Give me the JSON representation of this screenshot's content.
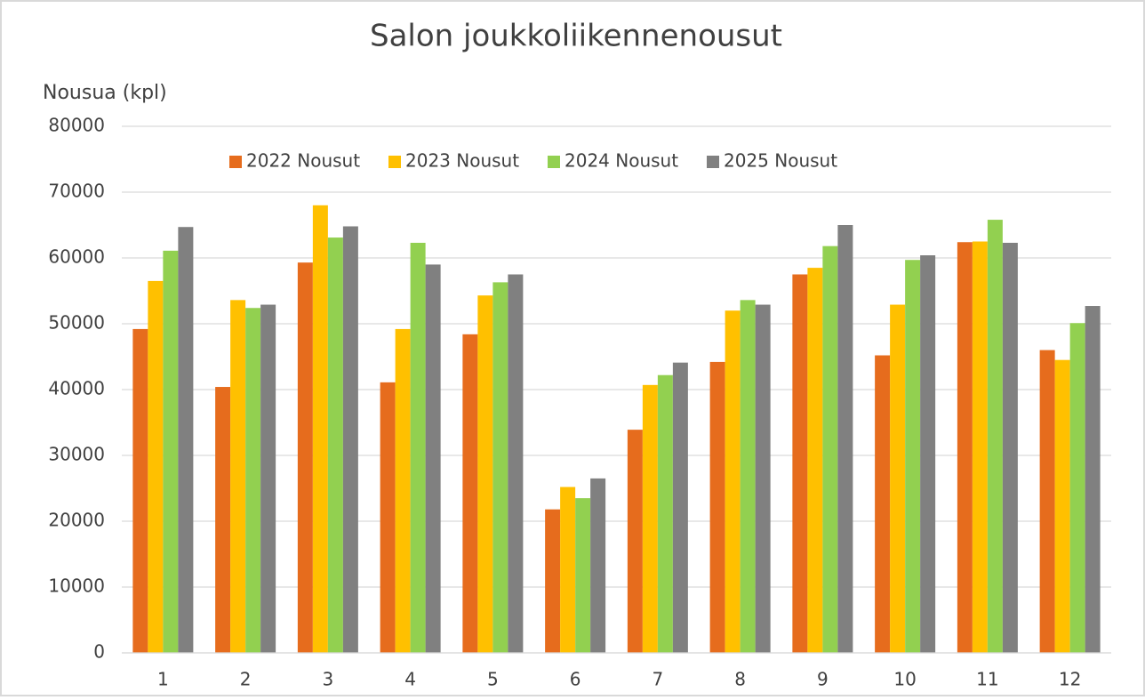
{
  "chart_data": {
    "type": "bar",
    "title": "Salon joukkoliikennenousut",
    "y_label": "Nousua (kpl)",
    "categories": [
      "1",
      "2",
      "3",
      "4",
      "5",
      "6",
      "7",
      "8",
      "9",
      "10",
      "11",
      "12"
    ],
    "series": [
      {
        "name": "2022 Nousut",
        "color": "#e66c1d",
        "values": [
          49200,
          40400,
          59300,
          41100,
          48400,
          21800,
          33900,
          44200,
          57500,
          45200,
          62400,
          46000
        ]
      },
      {
        "name": "2023 Nousut",
        "color": "#ffc000",
        "values": [
          56500,
          53600,
          68000,
          49200,
          54300,
          25200,
          40700,
          52000,
          58500,
          52900,
          62500,
          44500
        ]
      },
      {
        "name": "2024 Nousut",
        "color": "#92d050",
        "values": [
          61100,
          52400,
          63100,
          62300,
          56300,
          23500,
          42200,
          53600,
          61800,
          59700,
          65800,
          50100
        ]
      },
      {
        "name": "2025 Nousut",
        "color": "#808080",
        "values": [
          64700,
          52900,
          64800,
          59000,
          57500,
          26500,
          44100,
          52900,
          65000,
          60400,
          62300,
          52700
        ]
      }
    ],
    "ylim": [
      0,
      80000
    ],
    "yticks": [
      0,
      10000,
      20000,
      30000,
      40000,
      50000,
      60000,
      70000,
      80000
    ],
    "grid": true,
    "legend": "top"
  }
}
